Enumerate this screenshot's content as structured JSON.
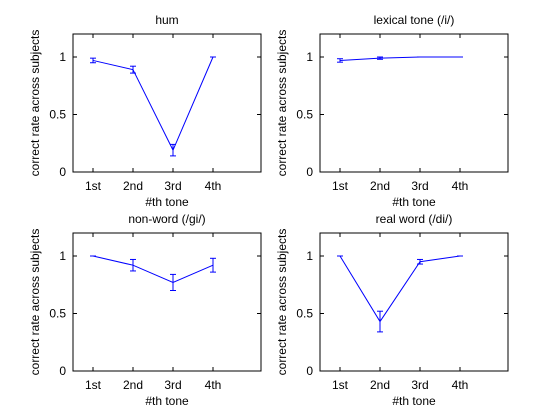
{
  "chart_data": [
    {
      "type": "line",
      "title": "hum",
      "xlabel": "#th tone",
      "ylabel": "correct rate across subjects",
      "categories": [
        "1st",
        "2nd",
        "3rd",
        "4th"
      ],
      "values": [
        0.97,
        0.89,
        0.19,
        1.0
      ],
      "errors": [
        0.02,
        0.03,
        0.05,
        0.0
      ],
      "ylim": [
        0,
        1.2
      ],
      "yticks": [
        0,
        0.5,
        1
      ],
      "ytick_labels": [
        "0",
        "0.5",
        "1"
      ],
      "grid": false,
      "line_color": "#0000ff",
      "errorbar_color": "#0000ff"
    },
    {
      "type": "line",
      "title": "lexical tone (/i/)",
      "xlabel": "#th tone",
      "ylabel": "correct rate across subjects",
      "categories": [
        "1st",
        "2nd",
        "3rd",
        "4th"
      ],
      "values": [
        0.97,
        0.99,
        1.0,
        1.0
      ],
      "errors": [
        0.015,
        0.01,
        0.0,
        0.0
      ],
      "ylim": [
        0,
        1.2
      ],
      "yticks": [
        0,
        0.5,
        1
      ],
      "ytick_labels": [
        "0",
        "0.5",
        "1"
      ],
      "grid": false,
      "line_color": "#0000ff",
      "errorbar_color": "#0000ff"
    },
    {
      "type": "line",
      "title": "non-word (/gi/)",
      "xlabel": "#th tone",
      "ylabel": "correct rate across subjects",
      "categories": [
        "1st",
        "2nd",
        "3rd",
        "4th"
      ],
      "values": [
        1.0,
        0.92,
        0.77,
        0.92
      ],
      "errors": [
        0.0,
        0.05,
        0.07,
        0.06
      ],
      "ylim": [
        0,
        1.2
      ],
      "yticks": [
        0,
        0.5,
        1
      ],
      "ytick_labels": [
        "0",
        "0.5",
        "1"
      ],
      "grid": false,
      "line_color": "#0000ff",
      "errorbar_color": "#0000ff"
    },
    {
      "type": "line",
      "title": "real word (/di/)",
      "xlabel": "#th tone",
      "ylabel": "correct rate across subjects",
      "categories": [
        "1st",
        "2nd",
        "3rd",
        "4th"
      ],
      "values": [
        1.0,
        0.43,
        0.95,
        1.0
      ],
      "errors": [
        0.0,
        0.09,
        0.02,
        0.0
      ],
      "ylim": [
        0,
        1.2
      ],
      "yticks": [
        0,
        0.5,
        1
      ],
      "ytick_labels": [
        "0",
        "0.5",
        "1"
      ],
      "grid": false,
      "line_color": "#0000ff",
      "errorbar_color": "#0000ff"
    }
  ]
}
